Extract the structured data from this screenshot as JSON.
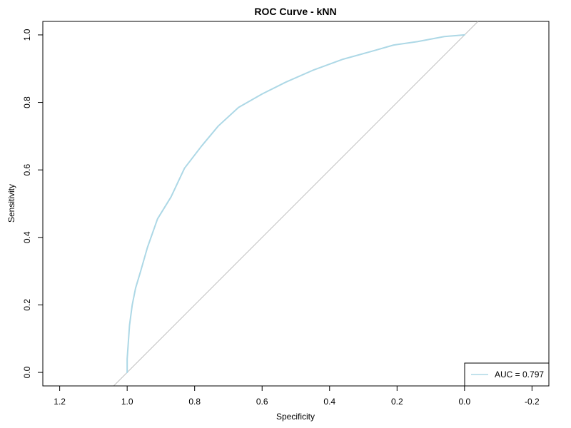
{
  "chart_data": {
    "type": "line",
    "title": "ROC Curve - kNN",
    "xlabel": "Specificity",
    "ylabel": "Sensitivity",
    "xlim": [
      1.25,
      -0.25
    ],
    "ylim": [
      -0.04,
      1.04
    ],
    "x_reversed": true,
    "grid": false,
    "x_ticks": [
      1.2,
      1.0,
      0.8,
      0.6,
      0.4,
      0.2,
      0.0,
      -0.2
    ],
    "x_tick_labels": [
      "1.2",
      "1.0",
      "0.8",
      "0.6",
      "0.4",
      "0.2",
      "0.0",
      "-0.2"
    ],
    "y_ticks": [
      0.0,
      0.2,
      0.4,
      0.6,
      0.8,
      1.0
    ],
    "y_tick_labels": [
      "0.0",
      "0.2",
      "0.4",
      "0.6",
      "0.8",
      "1.0"
    ],
    "series": [
      {
        "color": "#add8e6",
        "x": [
          1.0,
          1.0,
          0.993,
          0.985,
          0.975,
          0.96,
          0.94,
          0.91,
          0.87,
          0.83,
          0.78,
          0.73,
          0.67,
          0.6,
          0.53,
          0.45,
          0.36,
          0.28,
          0.21,
          0.14,
          0.06,
          0.0
        ],
        "y": [
          0.0,
          0.04,
          0.14,
          0.2,
          0.25,
          0.3,
          0.37,
          0.455,
          0.52,
          0.605,
          0.67,
          0.73,
          0.785,
          0.825,
          0.86,
          0.895,
          0.928,
          0.95,
          0.97,
          0.98,
          0.995,
          1.0
        ]
      }
    ],
    "diagonal": {
      "color": "#bebebe",
      "description": "reference line sensitivity = 1 - specificity"
    },
    "legend": {
      "position": "bottom-right",
      "entries": [
        {
          "label": "AUC = 0.797",
          "color": "#add8e6"
        }
      ]
    }
  }
}
